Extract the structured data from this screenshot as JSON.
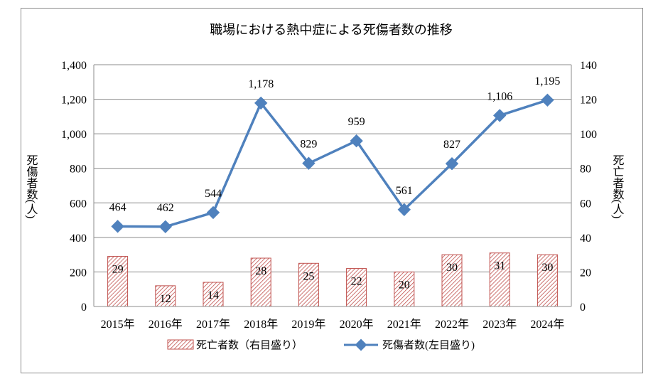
{
  "chart_data": {
    "type": "bar",
    "title": "職場における熱中症による死傷者数の推移",
    "categories": [
      "2015年",
      "2016年",
      "2017年",
      "2018年",
      "2019年",
      "2020年",
      "2021年",
      "2022年",
      "2023年",
      "2024年"
    ],
    "series": [
      {
        "name": "死亡者数（右目盛り）",
        "type": "bar",
        "axis": "right",
        "values": [
          29,
          12,
          14,
          28,
          25,
          22,
          20,
          30,
          31,
          30
        ],
        "color": "#c0504d"
      },
      {
        "name": "死傷者数(左目盛り)",
        "type": "line",
        "axis": "left",
        "values": [
          464,
          462,
          544,
          1178,
          829,
          959,
          561,
          827,
          1106,
          1195
        ],
        "labels": [
          "464",
          "462",
          "544",
          "1,178",
          "829",
          "959",
          "561",
          "827",
          "1,106",
          "1,195"
        ],
        "color": "#4f81bd"
      }
    ],
    "ylabel_left": "死傷者数(人)",
    "ylabel_right": "死亡者数(人)",
    "ylim_left": [
      0,
      1400
    ],
    "ylim_right": [
      0,
      140
    ],
    "yticks_left": [
      "0",
      "200",
      "400",
      "600",
      "800",
      "1,000",
      "1,200",
      "1,400"
    ],
    "yticks_right": [
      "0",
      "20",
      "40",
      "60",
      "80",
      "100",
      "120",
      "140"
    ],
    "grid": true,
    "legend_position": "bottom"
  }
}
